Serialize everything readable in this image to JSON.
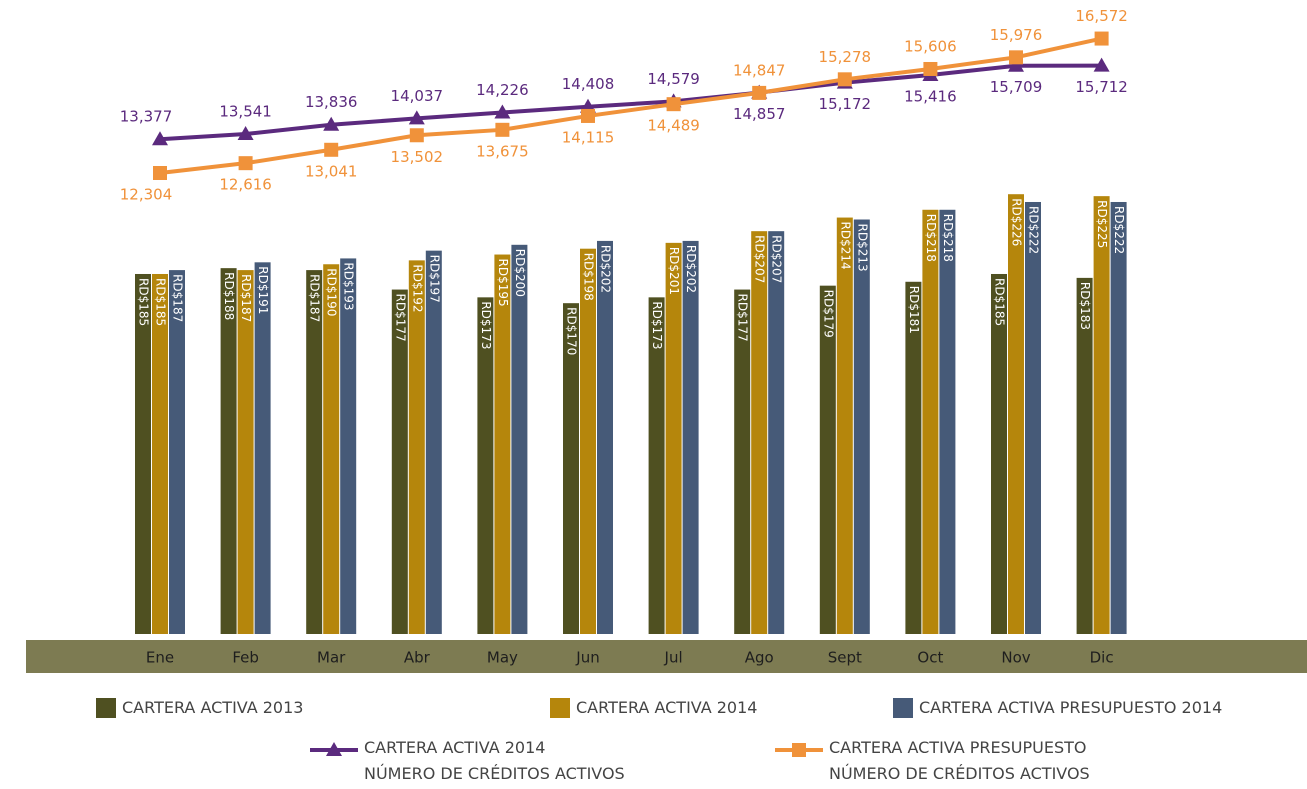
{
  "chart_data": {
    "type": "bar",
    "categories": [
      "Ene",
      "Feb",
      "Mar",
      "Abr",
      "May",
      "Jun",
      "Jul",
      "Ago",
      "Sept",
      "Oct",
      "Nov",
      "Dic"
    ],
    "series": [
      {
        "name": "CARTERA ACTIVA 2013",
        "type": "bar",
        "color": "#4f5021",
        "values": [
          185,
          188,
          187,
          177,
          173,
          170,
          173,
          177,
          179,
          181,
          185,
          183
        ],
        "value_labels": [
          "RD$185",
          "RD$188",
          "RD$187",
          "RD$177",
          "RD$173",
          "RD$170",
          "RD$173",
          "RD$177",
          "RD$179",
          "RD$181",
          "RD$185",
          "RD$183"
        ]
      },
      {
        "name": "CARTERA ACTIVA 2014",
        "type": "bar",
        "color": "#b5860c",
        "values": [
          185,
          187,
          190,
          192,
          195,
          198,
          201,
          207,
          214,
          218,
          226,
          225
        ],
        "value_labels": [
          "RD$185",
          "RD$187",
          "RD$190",
          "RD$192",
          "RD$195",
          "RD$198",
          "RD$201",
          "RD$207",
          "RD$214",
          "RD$218",
          "RD$226",
          "RD$225"
        ]
      },
      {
        "name": "CARTERA ACTIVA PRESUPUESTO 2014",
        "type": "bar",
        "color": "#465a78",
        "values": [
          187,
          191,
          193,
          197,
          200,
          202,
          202,
          207,
          213,
          218,
          222,
          222
        ],
        "value_labels": [
          "RD$187",
          "RD$191",
          "RD$193",
          "RD$197",
          "RD$200",
          "RD$202",
          "RD$202",
          "RD$207",
          "RD$213",
          "RD$218",
          "RD$222",
          "RD$222"
        ]
      },
      {
        "name": "CARTERA ACTIVA 2014\nNÚMERO DE CRÉDITOS ACTIVOS",
        "type": "line",
        "marker": "triangle",
        "color": "#5b2a7e",
        "values": [
          13377,
          13541,
          13836,
          14037,
          14226,
          14408,
          14579,
          14857,
          15172,
          15416,
          15709,
          15712
        ],
        "value_labels": [
          "13,377",
          "13,541",
          "13,836",
          "14,037",
          "14,226",
          "14,408",
          "14,579",
          "14,857",
          "15,172",
          "15,416",
          "15,709",
          "15,712"
        ]
      },
      {
        "name": "CARTERA ACTIVA PRESUPUESTO\nNÚMERO DE CRÉDITOS ACTIVOS",
        "type": "line",
        "marker": "square",
        "color": "#f0923a",
        "values": [
          12304,
          12616,
          13041,
          13502,
          13675,
          14115,
          14489,
          14847,
          15278,
          15606,
          15976,
          16572
        ],
        "value_labels": [
          "12,304",
          "12,616",
          "13,041",
          "13,502",
          "13,675",
          "14,115",
          "14,489",
          "14,847",
          "15,278",
          "15,606",
          "15,976",
          "16,572"
        ]
      }
    ]
  }
}
